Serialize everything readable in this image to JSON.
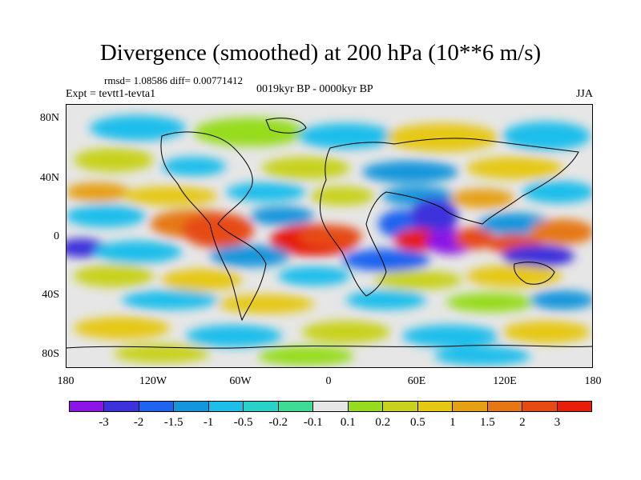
{
  "header": {
    "title": "Divergence (smoothed) at 200 hPa (10**6 m/s)",
    "stats": "rmsd= 1.08586 diff= 0.00771412",
    "experiment": "Expt = tevtt1-tevta1",
    "period": "0019kyr BP - 0000kyr BP",
    "season": "JJA"
  },
  "axes": {
    "y_ticks": [
      "80N",
      "40N",
      "0",
      "40S",
      "80S"
    ],
    "x_ticks": [
      "180",
      "120W",
      "60W",
      "0",
      "60E",
      "120E",
      "180"
    ]
  },
  "colorbar": {
    "colors": [
      "#8c14e6",
      "#3c32dc",
      "#1e64f0",
      "#1496dc",
      "#1ebeeb",
      "#28d2c8",
      "#3cdc96",
      "#e6e6e6",
      "#96dc1e",
      "#c8d21e",
      "#e6c814",
      "#e6a014",
      "#e67814",
      "#e64b14",
      "#e61e0a"
    ],
    "labels": [
      "-3",
      "-2",
      "-1.5",
      "-1",
      "-0.5",
      "-0.2",
      "-0.1",
      "0.1",
      "0.2",
      "0.5",
      "1",
      "1.5",
      "2",
      "3"
    ]
  }
}
